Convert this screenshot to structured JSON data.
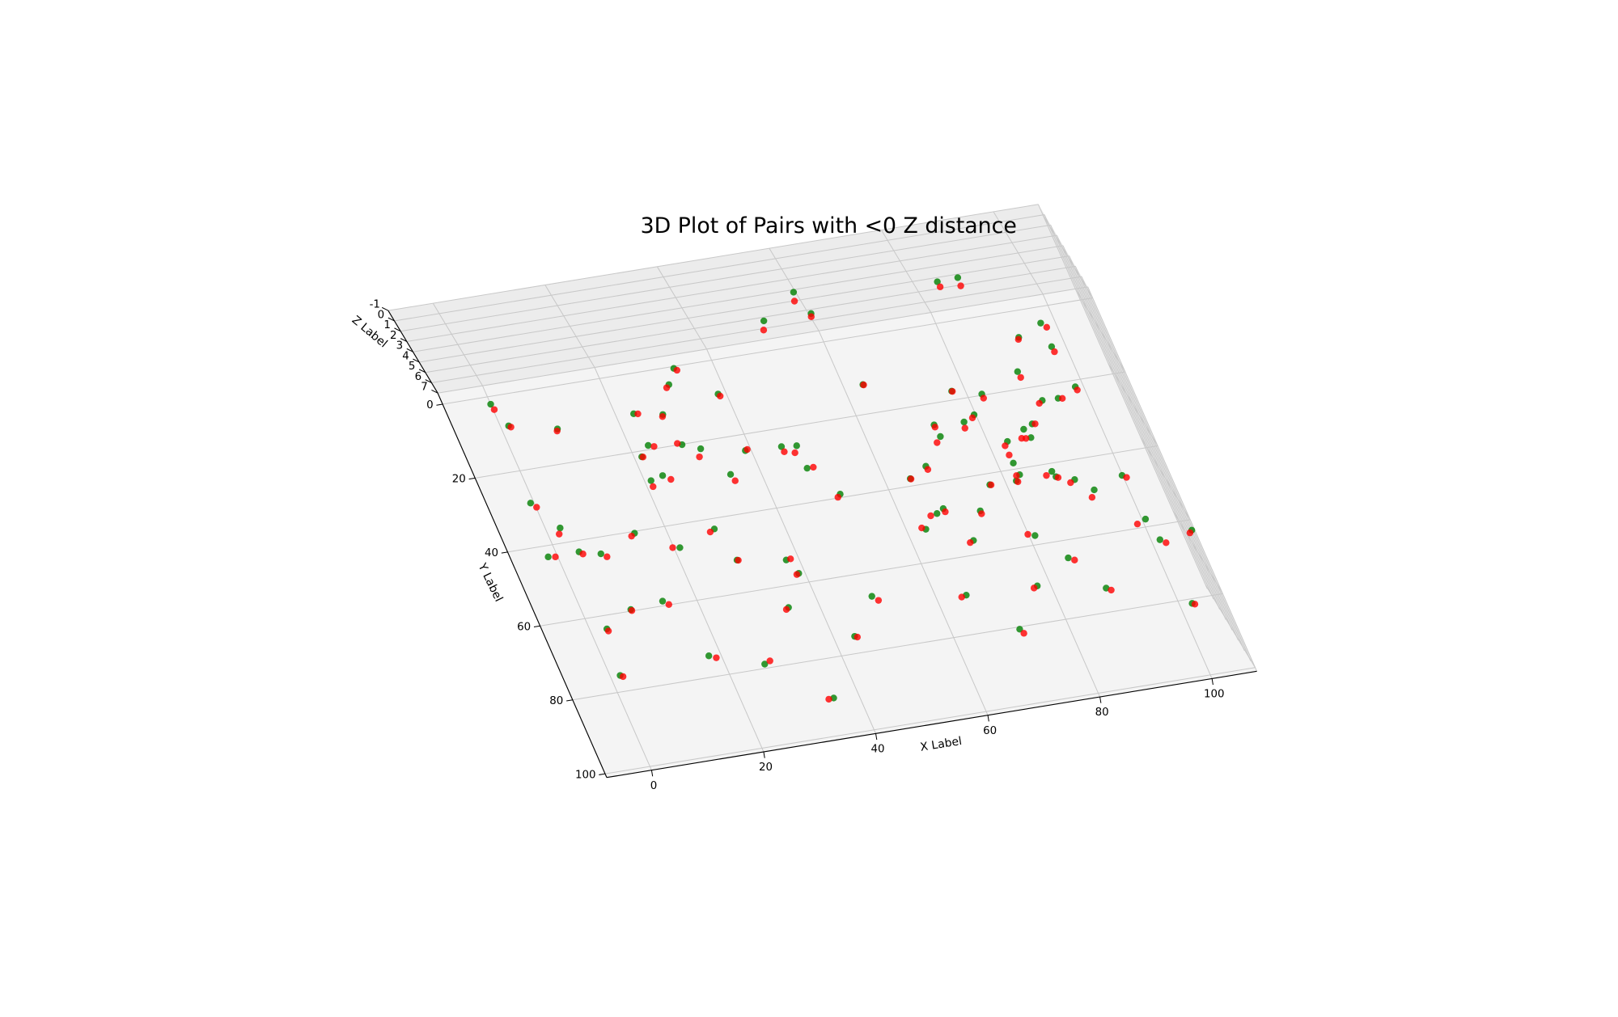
{
  "chart_data": {
    "type": "scatter3d",
    "title": "3D Plot of Pairs with <0 Z distance",
    "x_label": "X Label",
    "y_label": "Y Label",
    "z_label": "Z Label",
    "xlim": [
      -8,
      108
    ],
    "ylim": [
      -3,
      101
    ],
    "zlim": [
      -1,
      7
    ],
    "xticks": [
      0,
      20,
      40,
      60,
      80,
      100
    ],
    "yticks": [
      0,
      20,
      40,
      60,
      80,
      100
    ],
    "zticks": [
      -1,
      0,
      1,
      2,
      3,
      4,
      5,
      6,
      7
    ],
    "grid": true,
    "series": [
      {
        "color": "#008000",
        "x": [
          0,
          1.4,
          9.3,
          -0.6,
          2.5,
          -1.6,
          3.9,
          7.4,
          2.9,
          1.7,
          8.3,
          14.5,
          23.1,
          23.2,
          21.3,
          21.1,
          23.4,
          27.9,
          31.1,
          33.1,
          28.9,
          31.7,
          38.6,
          34.8,
          39.0,
          14.2,
          21.0,
          28.1,
          17.9,
          29.6,
          26.6,
          45.3,
          47.9,
          48.0,
          37.8,
          38.9,
          34.7,
          52.4,
          60.0,
          60.8,
          51.6,
          43.6,
          35.6,
          49.4,
          63.4,
          84.7,
          88.4,
          64.4,
          67.9,
          72.3,
          72.5,
          63.3,
          66.3,
          67.7,
          77.7,
          79.7,
          77.5,
          82.5,
          73.7,
          70.4,
          65.2,
          77.2,
          92.8,
          90.1,
          97.5,
          97.6,
          92.1,
          94.9,
          98.6,
          83.3,
          86.9,
          88.7,
          87.5,
          82.7,
          82.9,
          81.9,
          88.5,
          88.8,
          91.7,
          94.2,
          99.9,
          81.0,
          84.9,
          77.7,
          71.6,
          89.0,
          100.6,
          101.5,
          107.5,
          102.2
        ],
        "y": [
          2.0,
          8.2,
          11.0,
          28.6,
          36.1,
          42.9,
          42.9,
          44.3,
          63.5,
          75.8,
          59.6,
          40.5,
          10.3,
          18.9,
          21.5,
          27.9,
          27.1,
          11.7,
          4.4,
          0.5,
          20.1,
          21.9,
          8.8,
          29.6,
          24.2,
          58.8,
          46.0,
          42.7,
          74.5,
          51.5,
          78.9,
          24.7,
          25.1,
          31.2,
          53.5,
          57.4,
          65.6,
          0.8,
          0.5,
          0.9,
          39.1,
          75.6,
          90.3,
          66.2,
          12.4,
          3.8,
          3.6,
          38.1,
          35.6,
          25.5,
          28.7,
          51.5,
          48.0,
          47.0,
          17.7,
          24.6,
          26.0,
          19.7,
          49.1,
          56.3,
          69.8,
          42.9,
          6.9,
          15.5,
          4.2,
          10.6,
          23.8,
          23.9,
          21.7,
          32.7,
          30.3,
          29.3,
          32.7,
          38.4,
          41.6,
          43.0,
          42.1,
          43.6,
          45.1,
          48.5,
          46.0,
          57.6,
          64.6,
          70.4,
          80.6,
          73.8,
          58.0,
          63.8,
          62.7,
          81.2
        ],
        "z": [
          7,
          7,
          7,
          7,
          7,
          7,
          7,
          7,
          7,
          7,
          7,
          7,
          7,
          7,
          7,
          7,
          7,
          7,
          7,
          7,
          7,
          7,
          7,
          7,
          7,
          7,
          7,
          7,
          7,
          7,
          7,
          7,
          7,
          7,
          7,
          7,
          7,
          4,
          2,
          4,
          7,
          7,
          7,
          7,
          7,
          2,
          2,
          7,
          7,
          7,
          7,
          7,
          7,
          7,
          7,
          7,
          7,
          7,
          7,
          7,
          7,
          7,
          7,
          7,
          7,
          7,
          7,
          7,
          7,
          7,
          7,
          7,
          7,
          7,
          7,
          7,
          7,
          7,
          7,
          7,
          7,
          7,
          7,
          7,
          7,
          7,
          7,
          7,
          7,
          7
        ]
      },
      {
        "color": "#ff0000",
        "x": [
          0.2,
          1.7,
          9.1,
          0.1,
          1.9,
          -0.4,
          4.4,
          8.2,
          3.0,
          2.1,
          8.4,
          13.8,
          23.8,
          24.1,
          21.5,
          21.0,
          24.5,
          27.7,
          30.5,
          33.5,
          28.2,
          30.9,
          38.8,
          35.1,
          39.4,
          15.0,
          19.8,
          27.2,
          19.0,
          29.8,
          27.7,
          45.4,
          47.1,
          49.1,
          38.6,
          38.5,
          34.2,
          51.7,
          59.5,
          60.6,
          51.0,
          44.0,
          34.7,
          50.2,
          63.5,
          84.8,
          88.3,
          64.5,
          68.0,
          72.3,
          71.5,
          62.7,
          65.1,
          67.8,
          77.8,
          79.2,
          77.2,
          82.5,
          73.7,
          69.7,
          64.3,
          77.4,
          92.6,
          90.2,
          98.2,
          97.7,
          91.4,
          95.6,
          98.7,
          82.6,
          85.9,
          89.2,
          86.6,
          82.6,
          82.3,
          82.1,
          87.3,
          89.1,
          90.8,
          93.3,
          100.5,
          79.9,
          85.8,
          77.0,
          72.0,
          89.7,
          98.9,
          102.3,
          107.0,
          102.6
        ],
        "y": [
          3.5,
          8.6,
          11.5,
          29.9,
          37.6,
          43.2,
          43.6,
          45.3,
          64.1,
          76.2,
          59.9,
          41.1,
          10.5,
          19.4,
          21.6,
          29.5,
          28.4,
          12.2,
          5.1,
          1.1,
          19.6,
          23.9,
          9.4,
          31.4,
          24.0,
          59.9,
          45.7,
          43.3,
          75.3,
          51.6,
          78.3,
          26.1,
          26.8,
          31.2,
          53.4,
          57.6,
          66.0,
          3.1,
          2.8,
          1.7,
          39.8,
          75.9,
          90.4,
          67.5,
          12.5,
          5.2,
          5.8,
          38.2,
          36.5,
          26.1,
          30.1,
          51.0,
          48.3,
          47.9,
          17.8,
          25.3,
          27.6,
          20.8,
          49.9,
          56.7,
          70.1,
          43.0,
          7.4,
          17.1,
          5.5,
          12.0,
          24.4,
          24.1,
          22.6,
          33.7,
          32.5,
          29.4,
          32.7,
          36.2,
          41.7,
          43.3,
          42.9,
          43.9,
          45.7,
          50.3,
          46.7,
          57.0,
          65.4,
          70.8,
          81.8,
          74.5,
          58.9,
          64.8,
          63.3,
          81.5
        ],
        "z": [
          7,
          7,
          7,
          7,
          7,
          7,
          7,
          7,
          7,
          7,
          7,
          7,
          7,
          7,
          7,
          7,
          7,
          7,
          7,
          7,
          7,
          7,
          7,
          7,
          7,
          7,
          7,
          7,
          7,
          7,
          7,
          7,
          7,
          7,
          7,
          7,
          7,
          4,
          2,
          4,
          7,
          7,
          7,
          7,
          7,
          2,
          2,
          7,
          7,
          7,
          7,
          7,
          7,
          7,
          7,
          7,
          7,
          7,
          7,
          7,
          7,
          7,
          7,
          7,
          7,
          7,
          7,
          7,
          7,
          7,
          7,
          7,
          7,
          7,
          7,
          7,
          7,
          7,
          7,
          7,
          7,
          7,
          7,
          7,
          7,
          7,
          7,
          7,
          7,
          7
        ]
      }
    ]
  }
}
